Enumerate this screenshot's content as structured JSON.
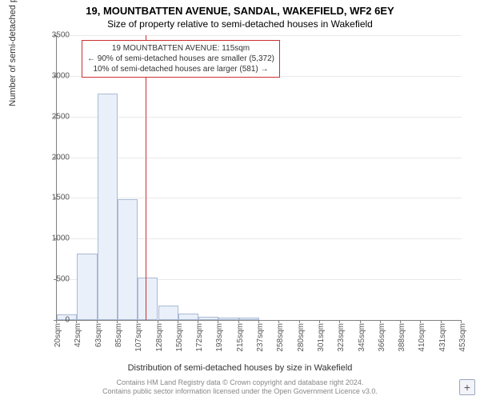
{
  "chart": {
    "type": "histogram",
    "title_main": "19, MOUNTBATTEN AVENUE, SANDAL, WAKEFIELD, WF2 6EY",
    "title_sub": "Size of property relative to semi-detached houses in Wakefield",
    "y_axis": {
      "label": "Number of semi-detached properties",
      "min": 0,
      "max": 3500,
      "ticks": [
        0,
        500,
        1000,
        1500,
        2000,
        2500,
        3000,
        3500
      ]
    },
    "x_axis": {
      "label": "Distribution of semi-detached houses by size in Wakefield",
      "tick_labels": [
        "20sqm",
        "42sqm",
        "63sqm",
        "85sqm",
        "107sqm",
        "128sqm",
        "150sqm",
        "172sqm",
        "193sqm",
        "215sqm",
        "237sqm",
        "258sqm",
        "280sqm",
        "301sqm",
        "323sqm",
        "345sqm",
        "366sqm",
        "388sqm",
        "410sqm",
        "431sqm",
        "453sqm"
      ]
    },
    "bars": {
      "values": [
        65,
        820,
        2780,
        1480,
        520,
        180,
        80,
        40,
        30,
        25,
        0,
        0,
        0,
        0,
        0,
        0,
        0,
        0,
        0,
        0
      ],
      "fill_color": "#eaf0fa",
      "border_color": "#a9b9d4"
    },
    "reference": {
      "value_sqm": 115,
      "line_color": "#ca3030",
      "box_border_color": "#ca3030",
      "box_lines": [
        "19 MOUNTBATTEN AVENUE: 115sqm",
        "← 90% of semi-detached houses are smaller (5,372)",
        "10% of semi-detached houses are larger (581) →"
      ]
    },
    "grid_color": "#e9e9e9",
    "axis_color": "#808080",
    "background_color": "#ffffff",
    "title_fontsize": 13,
    "subtitle_fontsize": 12,
    "axis_label_fontsize": 11,
    "tick_label_fontsize": 10
  },
  "plus_badge": {
    "label": "+"
  },
  "credits": {
    "line1": "Contains HM Land Registry data © Crown copyright and database right 2024.",
    "line2": "Contains public sector information licensed under the Open Government Licence v3.0."
  }
}
